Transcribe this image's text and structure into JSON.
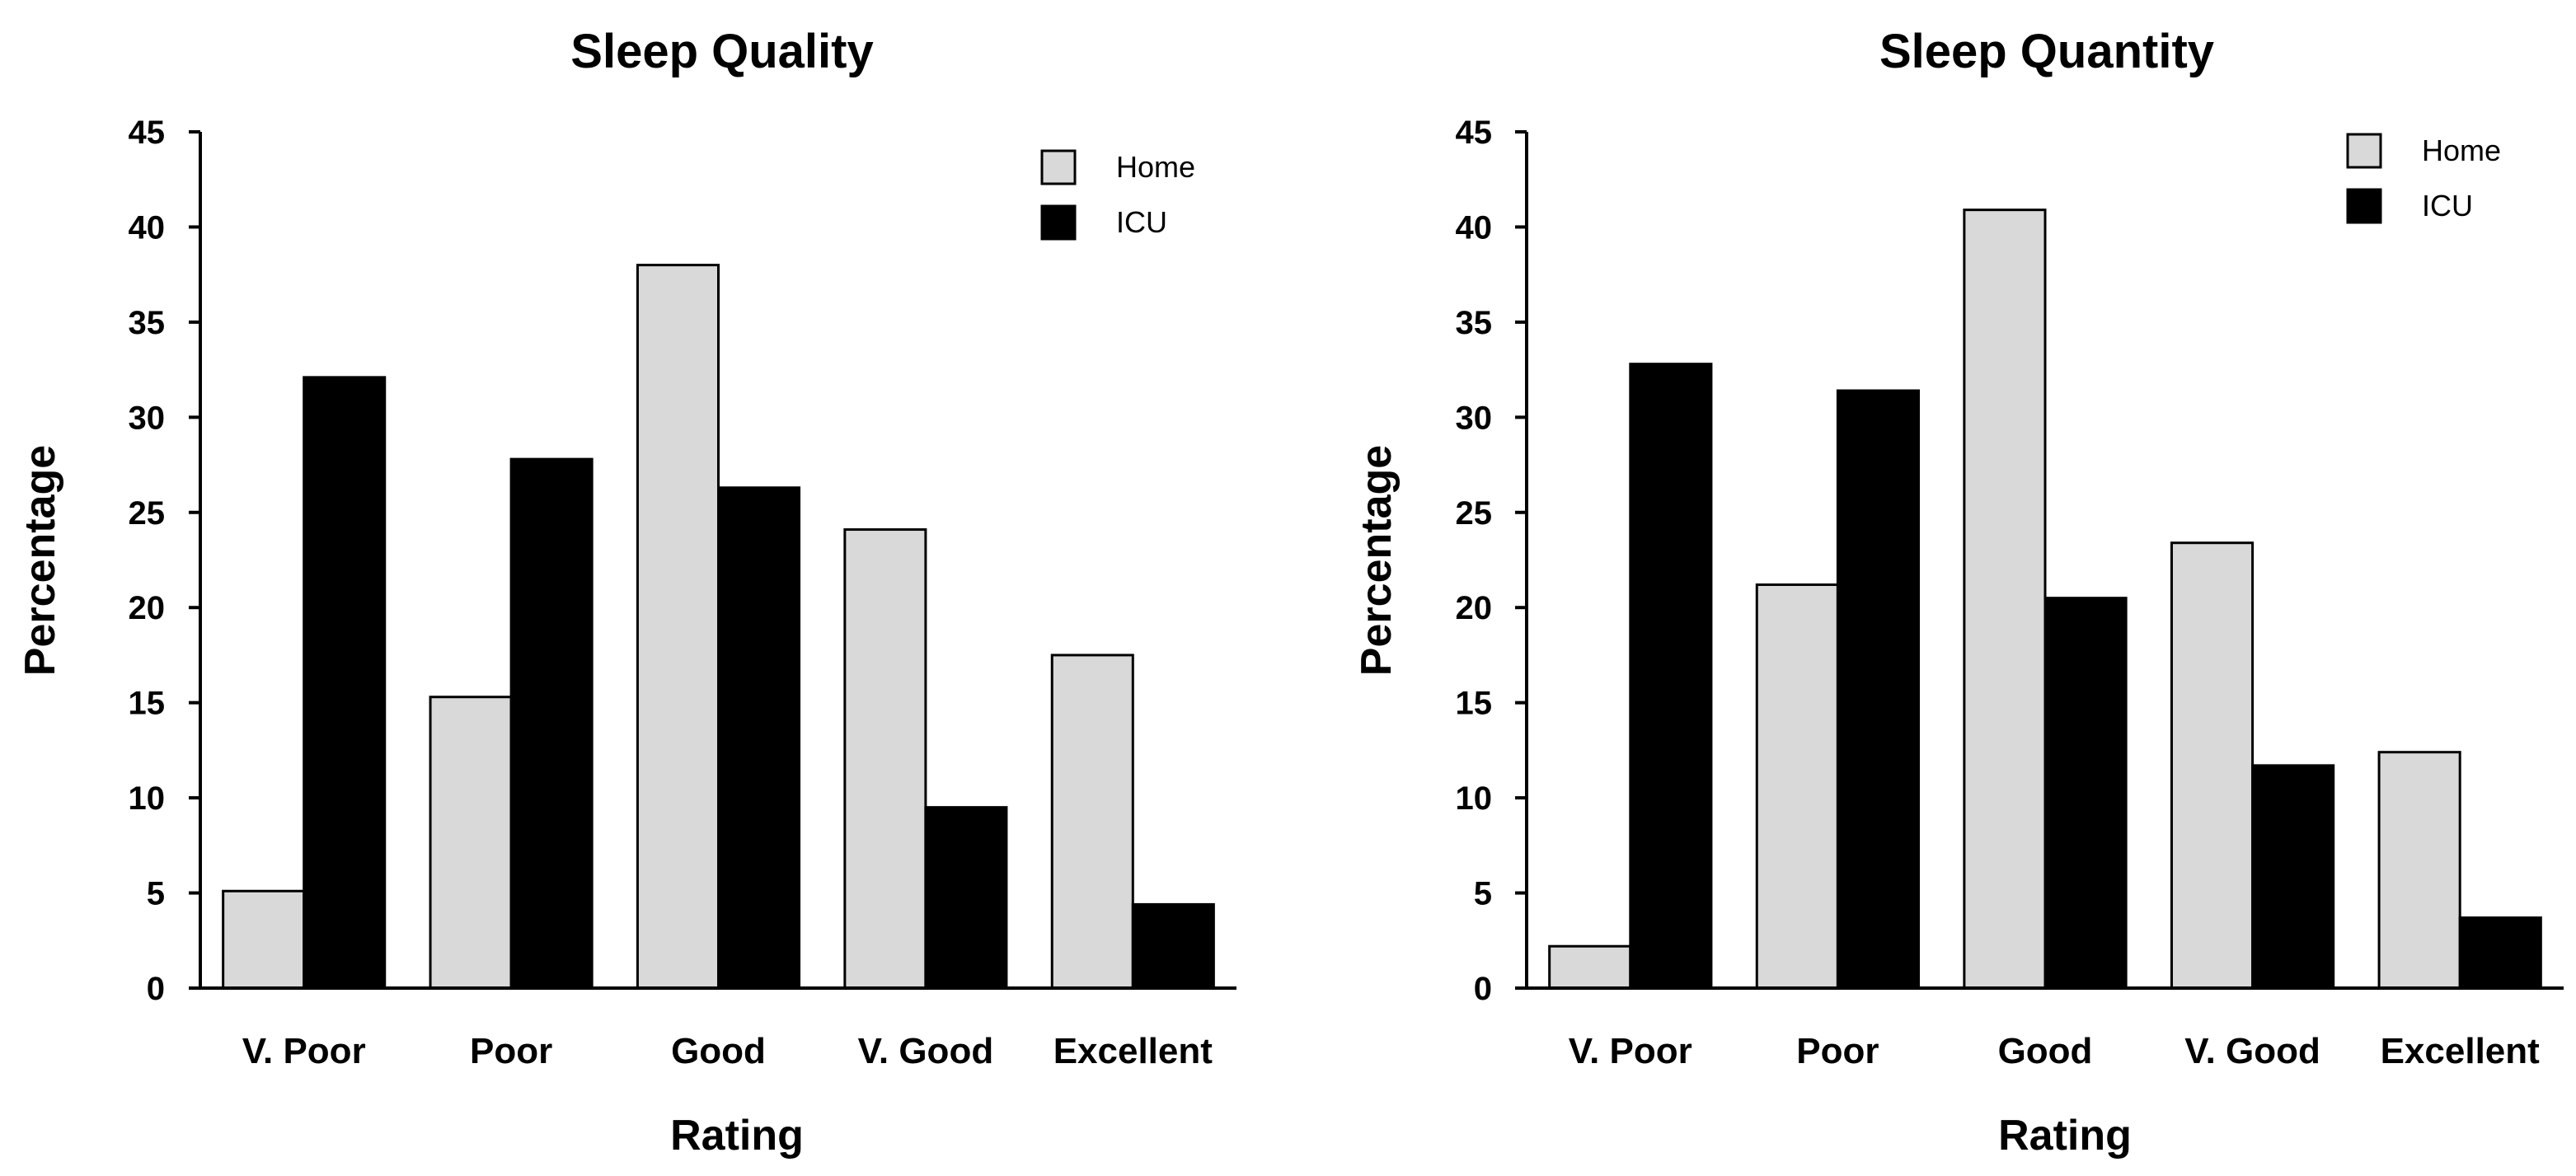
{
  "colors": {
    "home": "#d9d9d9",
    "icu": "#000000",
    "bar_stroke": "#000000",
    "axis": "#000000"
  },
  "chart_data": [
    {
      "type": "bar",
      "title": "Sleep Quality",
      "xlabel": "Rating",
      "ylabel": "Percentage",
      "ylim": [
        0,
        45
      ],
      "yticks": [
        0,
        5,
        10,
        15,
        20,
        25,
        30,
        35,
        40,
        45
      ],
      "grid": false,
      "legend_position": "top-right",
      "categories": [
        "V. Poor",
        "Poor",
        "Good",
        "V. Good",
        "Excellent"
      ],
      "series": [
        {
          "name": "Home",
          "values": [
            5.1,
            15.3,
            38.0,
            24.1,
            17.5
          ]
        },
        {
          "name": "ICU",
          "values": [
            32.1,
            27.8,
            26.3,
            9.5,
            4.4
          ]
        }
      ]
    },
    {
      "type": "bar",
      "title": "Sleep Quantity",
      "xlabel": "Rating",
      "ylabel": "Percentage",
      "ylim": [
        0,
        45
      ],
      "yticks": [
        0,
        5,
        10,
        15,
        20,
        25,
        30,
        35,
        40,
        45
      ],
      "grid": false,
      "legend_position": "top-right",
      "categories": [
        "V. Poor",
        "Poor",
        "Good",
        "V. Good",
        "Excellent"
      ],
      "series": [
        {
          "name": "Home",
          "values": [
            2.2,
            21.2,
            40.9,
            23.4,
            12.4
          ]
        },
        {
          "name": "ICU",
          "values": [
            32.8,
            31.4,
            20.5,
            11.7,
            3.7
          ]
        }
      ]
    }
  ]
}
